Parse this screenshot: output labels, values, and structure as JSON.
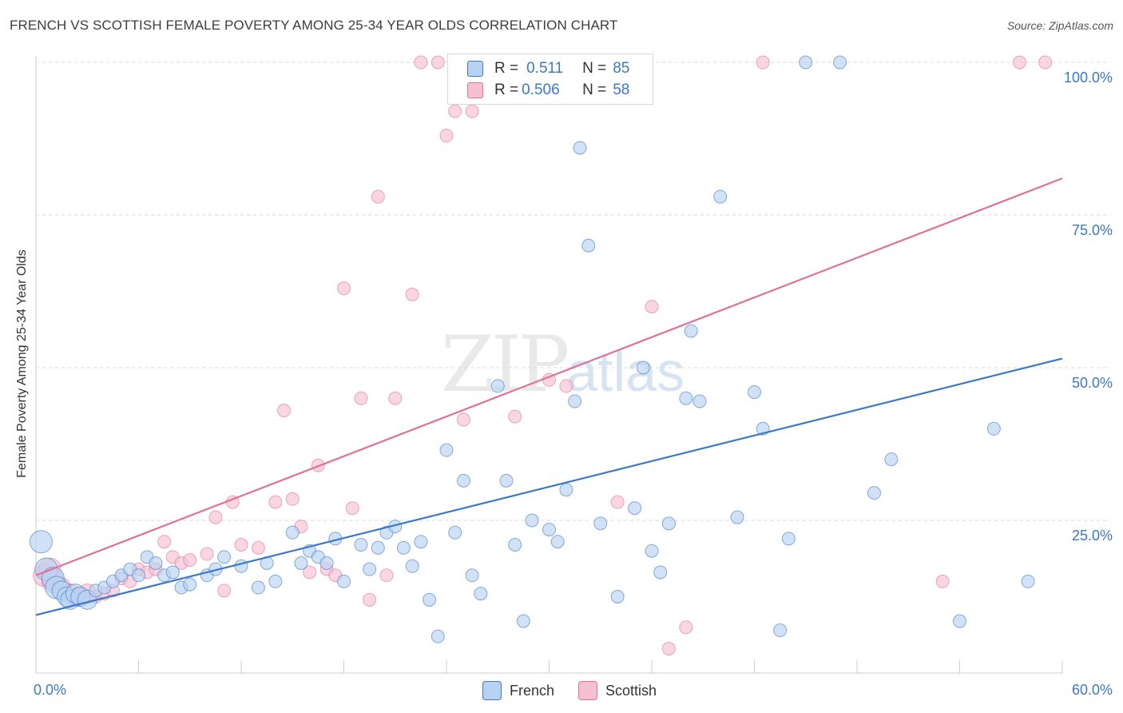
{
  "title": "FRENCH VS SCOTTISH FEMALE POVERTY AMONG 25-34 YEAR OLDS CORRELATION CHART",
  "source": "Source: ZipAtlas.com",
  "watermark": {
    "zip": "ZIP",
    "atlas": "atlas"
  },
  "colors": {
    "french": "#3b78c8",
    "scottish": "#e07098",
    "french_fill": "#b9d2f2",
    "scottish_fill": "#f6c0d2",
    "value_text": "#3b78c8"
  },
  "legend": {
    "french": {
      "r_label": "R =",
      "r_value": "0.511",
      "n_label": "N =",
      "n_value": "85"
    },
    "scottish": {
      "r_label": "R =",
      "r_value": "0.506",
      "n_label": "N =",
      "n_value": "58"
    }
  },
  "bottom_legend": [
    "French",
    "Scottish"
  ],
  "chart_data": {
    "type": "scatter",
    "title": "FRENCH VS SCOTTISH FEMALE POVERTY AMONG 25-34 YEAR OLDS CORRELATION CHART",
    "xlabel": "",
    "ylabel": "Female Poverty Among 25-34 Year Olds",
    "xlim": [
      0,
      60
    ],
    "ylim": [
      0,
      100
    ],
    "x_tick_labels": [
      "0.0%",
      "60.0%"
    ],
    "y_tick_labels": [
      "25.0%",
      "50.0%",
      "75.0%",
      "100.0%"
    ],
    "y_ticks": [
      25,
      50,
      75,
      100
    ],
    "grid": true,
    "legend_position": "top-center",
    "series": [
      {
        "name": "French",
        "color": "#3b78c8",
        "trendline": {
          "x": [
            0,
            60
          ],
          "y": [
            9.5,
            51.5
          ]
        },
        "points": [
          [
            0.3,
            21.5
          ],
          [
            0.6,
            17
          ],
          [
            1,
            15.5
          ],
          [
            1.2,
            14
          ],
          [
            1.5,
            13.5
          ],
          [
            1.8,
            12.5
          ],
          [
            2,
            12
          ],
          [
            2.3,
            13
          ],
          [
            2.6,
            12.5
          ],
          [
            3,
            12
          ],
          [
            3.5,
            13.5
          ],
          [
            4,
            14
          ],
          [
            4.5,
            15
          ],
          [
            5,
            16
          ],
          [
            5.5,
            17
          ],
          [
            6,
            16
          ],
          [
            6.5,
            19
          ],
          [
            7,
            18
          ],
          [
            7.5,
            16
          ],
          [
            8,
            16.5
          ],
          [
            8.5,
            14
          ],
          [
            9,
            14.5
          ],
          [
            10,
            16
          ],
          [
            10.5,
            17
          ],
          [
            11,
            19
          ],
          [
            12,
            17.5
          ],
          [
            13,
            14
          ],
          [
            13.5,
            18
          ],
          [
            14,
            15
          ],
          [
            15,
            23
          ],
          [
            15.5,
            18
          ],
          [
            16,
            20
          ],
          [
            16.5,
            19
          ],
          [
            17,
            18
          ],
          [
            17.5,
            22
          ],
          [
            18,
            15
          ],
          [
            19,
            21
          ],
          [
            19.5,
            17
          ],
          [
            20,
            20.5
          ],
          [
            20.5,
            23
          ],
          [
            21,
            24
          ],
          [
            21.5,
            20.5
          ],
          [
            22,
            17.5
          ],
          [
            22.5,
            21.5
          ],
          [
            23,
            12
          ],
          [
            23.5,
            6
          ],
          [
            24,
            36.5
          ],
          [
            24.5,
            23
          ],
          [
            25,
            31.5
          ],
          [
            25.5,
            16
          ],
          [
            26,
            13
          ],
          [
            27,
            47
          ],
          [
            27.5,
            31.5
          ],
          [
            28,
            21
          ],
          [
            28.5,
            8.5
          ],
          [
            29,
            25
          ],
          [
            30,
            23.5
          ],
          [
            30.5,
            21.5
          ],
          [
            31,
            30
          ],
          [
            31.5,
            44.5
          ],
          [
            31.8,
            86
          ],
          [
            32.3,
            70
          ],
          [
            33,
            24.5
          ],
          [
            34,
            12.5
          ],
          [
            35,
            27
          ],
          [
            35.5,
            50
          ],
          [
            36,
            20
          ],
          [
            36.5,
            16.5
          ],
          [
            37,
            24.5
          ],
          [
            38,
            45
          ],
          [
            38.3,
            56
          ],
          [
            38.8,
            44.5
          ],
          [
            40,
            78
          ],
          [
            41,
            25.5
          ],
          [
            42,
            46
          ],
          [
            42.5,
            40
          ],
          [
            43.5,
            7
          ],
          [
            44,
            22
          ],
          [
            45,
            100
          ],
          [
            47,
            100
          ],
          [
            49,
            29.5
          ],
          [
            50,
            35
          ],
          [
            54,
            8.5
          ],
          [
            56,
            40
          ],
          [
            58,
            15
          ]
        ]
      },
      {
        "name": "Scottish",
        "color": "#e07098",
        "trendline": {
          "x": [
            0,
            60
          ],
          "y": [
            16,
            81
          ]
        },
        "points": [
          [
            0.5,
            16
          ],
          [
            0.8,
            17
          ],
          [
            1,
            15
          ],
          [
            1.5,
            14
          ],
          [
            2,
            13
          ],
          [
            2.5,
            12.5
          ],
          [
            3,
            13
          ],
          [
            3.5,
            12.5
          ],
          [
            4,
            13
          ],
          [
            4.5,
            13.5
          ],
          [
            5,
            15.5
          ],
          [
            5.5,
            15
          ],
          [
            6,
            17
          ],
          [
            6.5,
            16.5
          ],
          [
            7,
            17
          ],
          [
            7.5,
            21.5
          ],
          [
            8,
            19
          ],
          [
            8.5,
            18
          ],
          [
            9,
            18.5
          ],
          [
            10,
            19.5
          ],
          [
            10.5,
            25.5
          ],
          [
            11,
            13.5
          ],
          [
            11.5,
            28
          ],
          [
            12,
            21
          ],
          [
            13,
            20.5
          ],
          [
            14,
            28
          ],
          [
            14.5,
            43
          ],
          [
            15,
            28.5
          ],
          [
            15.5,
            24
          ],
          [
            16,
            16.5
          ],
          [
            16.5,
            34
          ],
          [
            17,
            17
          ],
          [
            17.5,
            16
          ],
          [
            18,
            63
          ],
          [
            18.5,
            27
          ],
          [
            19,
            45
          ],
          [
            19.5,
            12
          ],
          [
            20,
            78
          ],
          [
            20.5,
            16
          ],
          [
            21,
            45
          ],
          [
            22,
            62
          ],
          [
            22.5,
            100
          ],
          [
            23.5,
            100
          ],
          [
            24,
            88
          ],
          [
            24.5,
            92
          ],
          [
            25,
            41.5
          ],
          [
            25.5,
            92
          ],
          [
            28,
            42
          ],
          [
            30,
            48
          ],
          [
            31,
            47
          ],
          [
            34,
            28
          ],
          [
            36,
            60
          ],
          [
            37,
            4
          ],
          [
            38,
            7.5
          ],
          [
            42.5,
            100
          ],
          [
            53,
            15
          ],
          [
            57.5,
            100
          ],
          [
            59,
            100
          ]
        ]
      }
    ]
  }
}
